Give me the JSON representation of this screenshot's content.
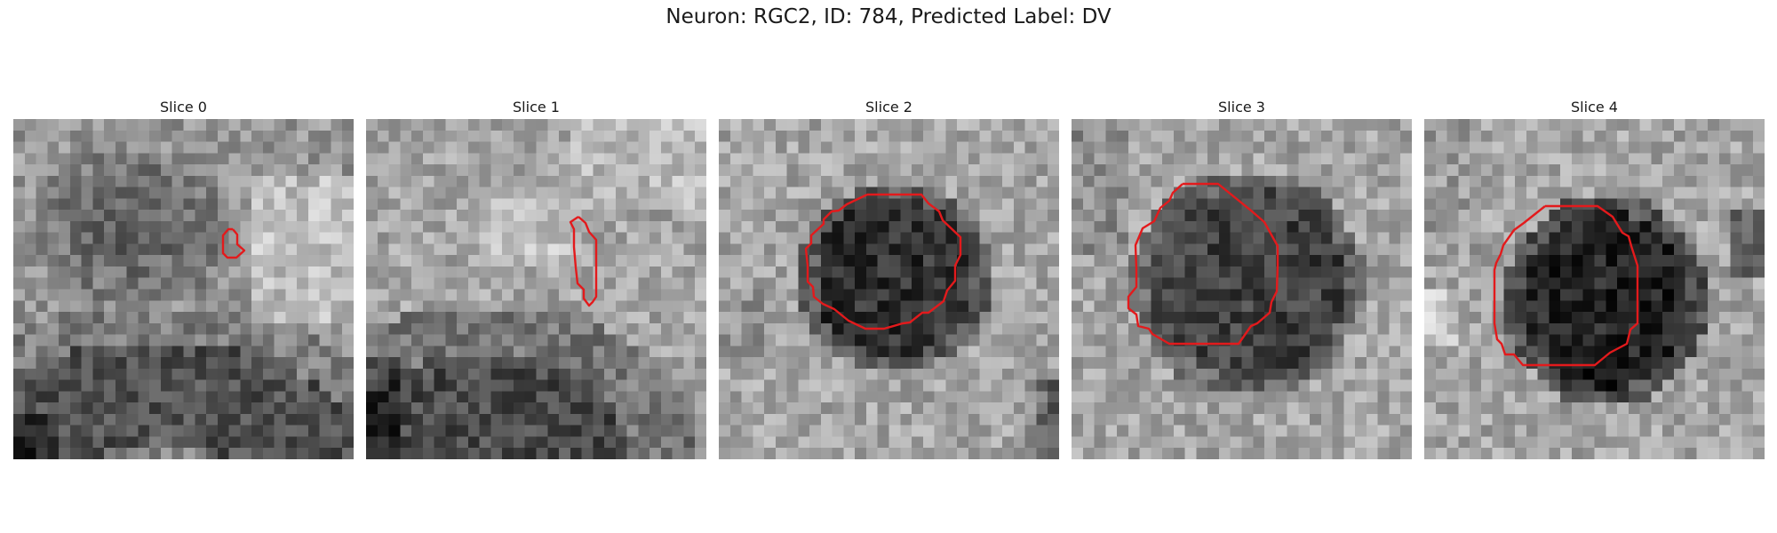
{
  "figure": {
    "title": "Neuron: RGC2, ID: 784, Predicted Label: DV"
  },
  "panels": [
    {
      "title": "Slice 0",
      "scene": "slice0"
    },
    {
      "title": "Slice 1",
      "scene": "slice1"
    },
    {
      "title": "Slice 2",
      "scene": "slice2"
    },
    {
      "title": "Slice 3",
      "scene": "slice3"
    },
    {
      "title": "Slice 4",
      "scene": "slice4"
    }
  ],
  "colors": {
    "contour": "#e31a1c",
    "background": "#ffffff"
  }
}
